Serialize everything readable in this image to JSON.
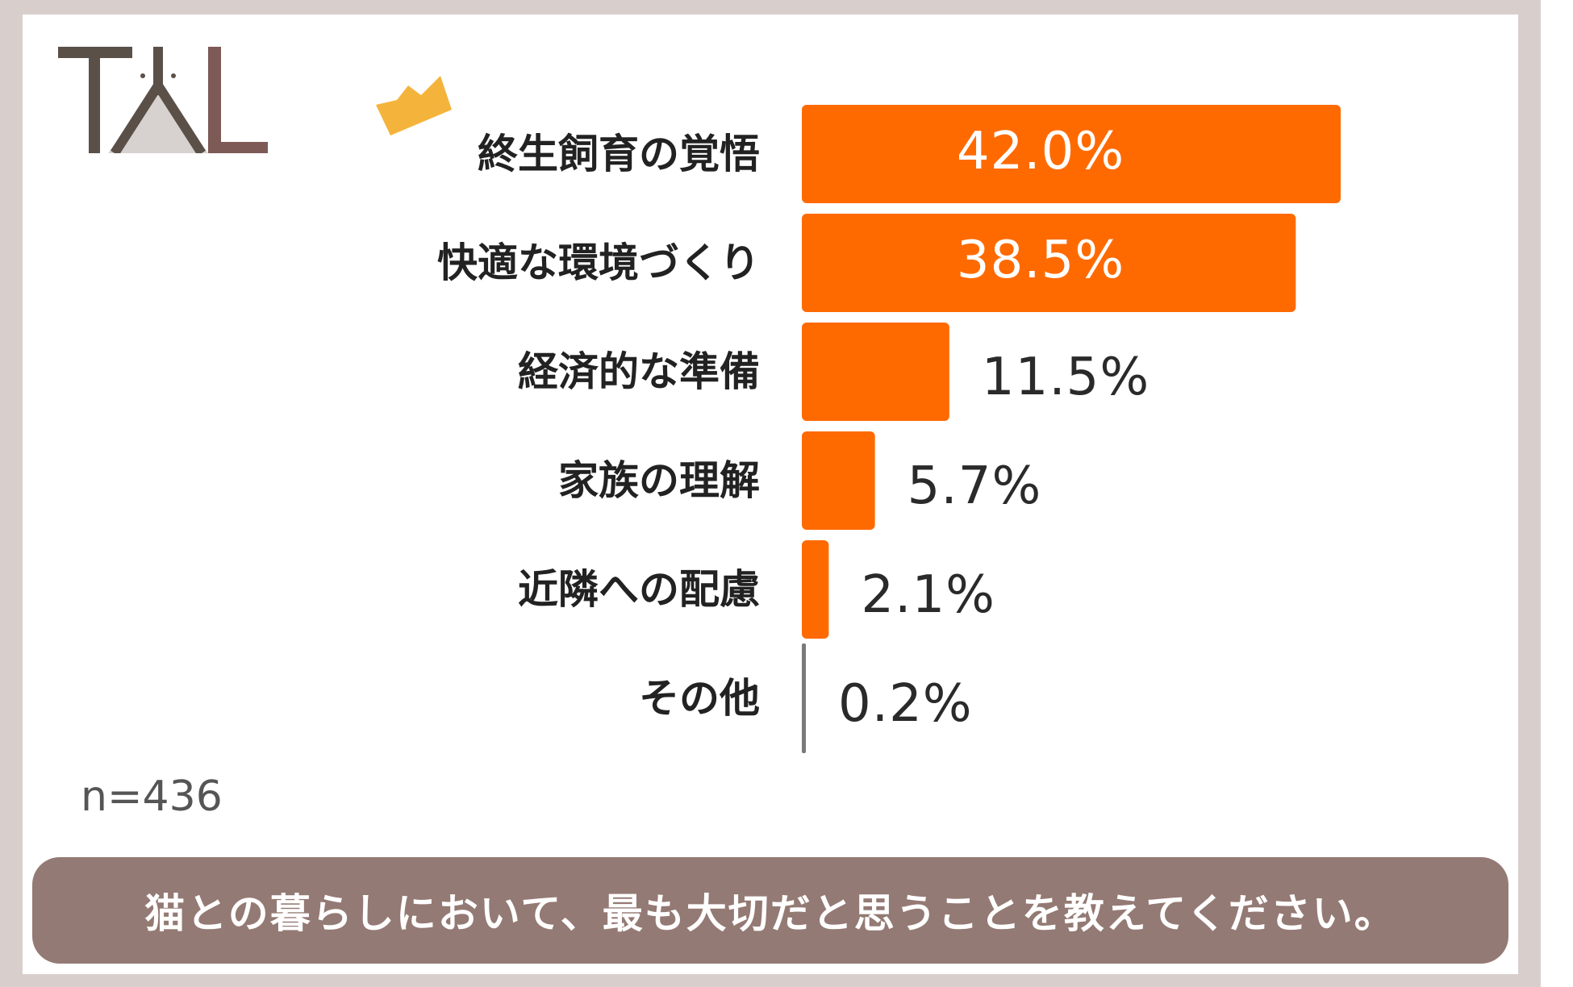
{
  "logo": {
    "icon": "tal-logo-icon",
    "colors": {
      "t": "#5b5048",
      "l": "#7d5a56",
      "tent": "#d7d2cf"
    }
  },
  "decoration": {
    "icon": "crown-icon",
    "color": "#f4b43c"
  },
  "sample_size_label": "n=436",
  "question": "猫との暮らしにおいて、最も大切だと思うことを教えてください。",
  "colors": {
    "bar": "#ff6a00",
    "bar_other": "#7a7a7a",
    "banner": "#947a74"
  },
  "chart_data": {
    "type": "bar",
    "orientation": "horizontal",
    "categories": [
      "終生飼育の覚悟",
      "快適な環境づくり",
      "経済的な準備",
      "家族の理解",
      "近隣への配慮",
      "その他"
    ],
    "values": [
      42.0,
      38.5,
      11.5,
      5.7,
      2.1,
      0.2
    ],
    "value_labels": [
      "42.0%",
      "38.5%",
      "11.5%",
      "5.7%",
      "2.1%",
      "0.2%"
    ],
    "title": "",
    "xlabel": "",
    "ylabel": "",
    "xlim": [
      0,
      42.0
    ],
    "grid": false,
    "legend": "none"
  }
}
